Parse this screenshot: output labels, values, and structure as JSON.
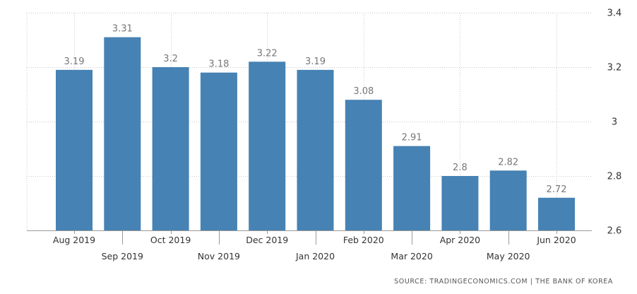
{
  "chart_data": {
    "type": "bar",
    "categories": [
      "Aug 2019",
      "Sep 2019",
      "Oct 2019",
      "Nov 2019",
      "Dec 2019",
      "Jan 2020",
      "Feb 2020",
      "Mar 2020",
      "Apr 2020",
      "May 2020",
      "Jun 2020"
    ],
    "values": [
      3.19,
      3.31,
      3.2,
      3.18,
      3.22,
      3.19,
      3.08,
      2.91,
      2.8,
      2.82,
      2.72
    ],
    "value_labels": [
      "3.19",
      "3.31",
      "3.2",
      "3.18",
      "3.22",
      "3.19",
      "3.08",
      "2.91",
      "2.8",
      "2.82",
      "2.72"
    ],
    "ylim": [
      2.6,
      3.4
    ],
    "yticks": [
      2.6,
      2.8,
      3,
      3.2,
      3.4
    ],
    "ytick_labels": [
      "2.6",
      "2.8",
      "3",
      "3.2",
      "3.4"
    ],
    "y_axis_side": "right",
    "grid": "dotted horizontal and vertical",
    "bar_color": "#4682b4",
    "title": "",
    "xlabel": "",
    "ylabel": ""
  },
  "footer": {
    "source": "SOURCE: TRADINGECONOMICS.COM | THE BANK OF KOREA"
  }
}
